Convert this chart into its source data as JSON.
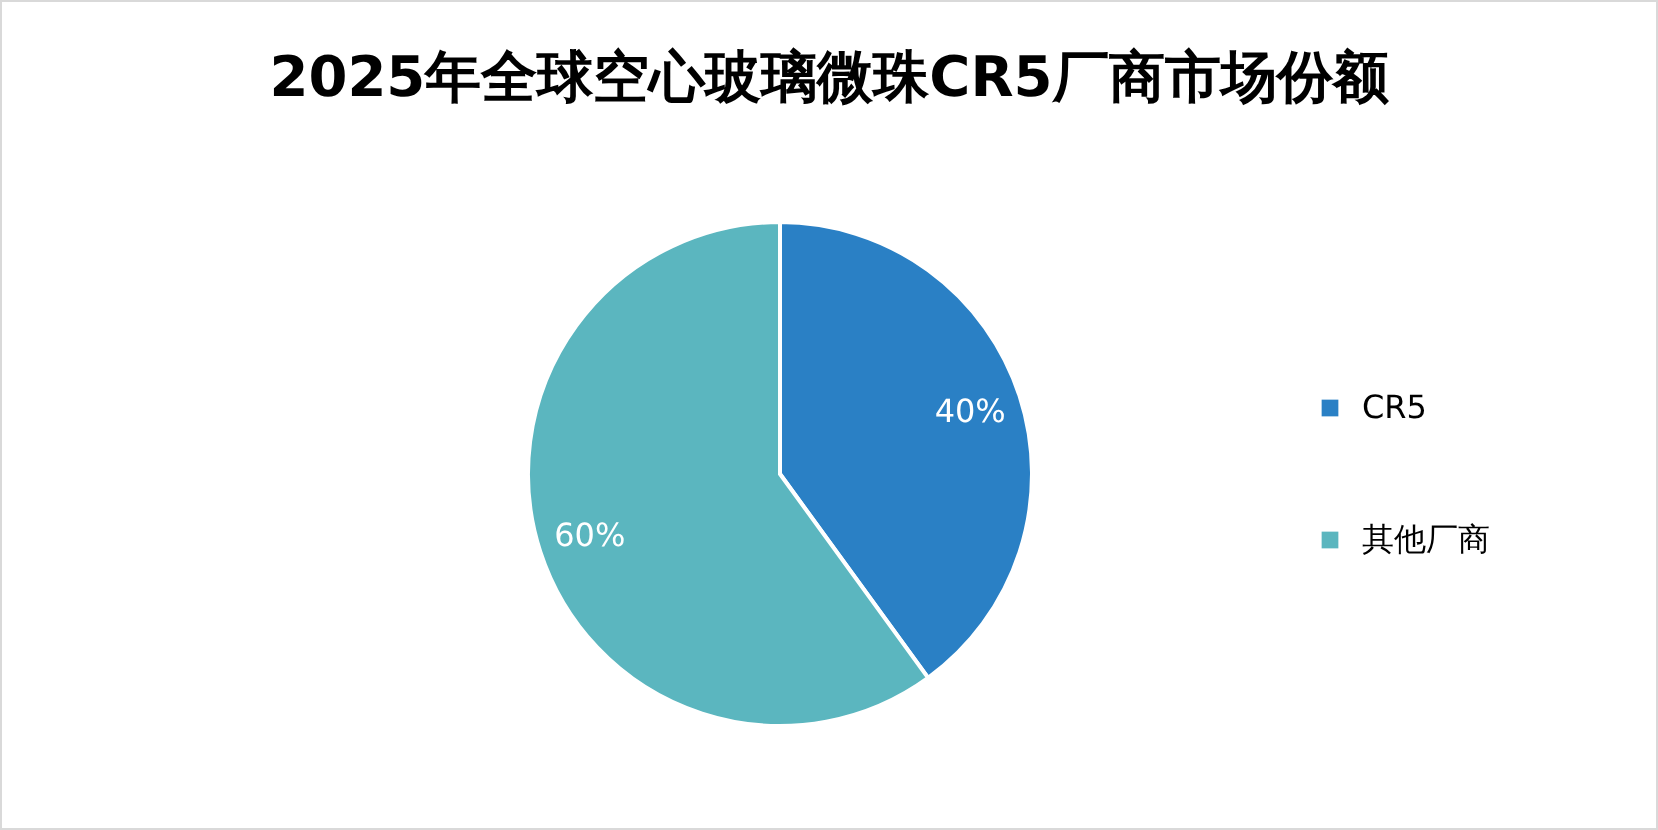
{
  "chart_data": {
    "type": "pie",
    "title": "2025年全球空心玻璃微珠CR5厂商市场份额",
    "categories": [
      "CR5",
      "其他厂商"
    ],
    "values": [
      40,
      60
    ],
    "colors": [
      "#2a80c5",
      "#5bb6bf"
    ],
    "value_labels": [
      "40%",
      "60%"
    ],
    "legend": "right"
  }
}
